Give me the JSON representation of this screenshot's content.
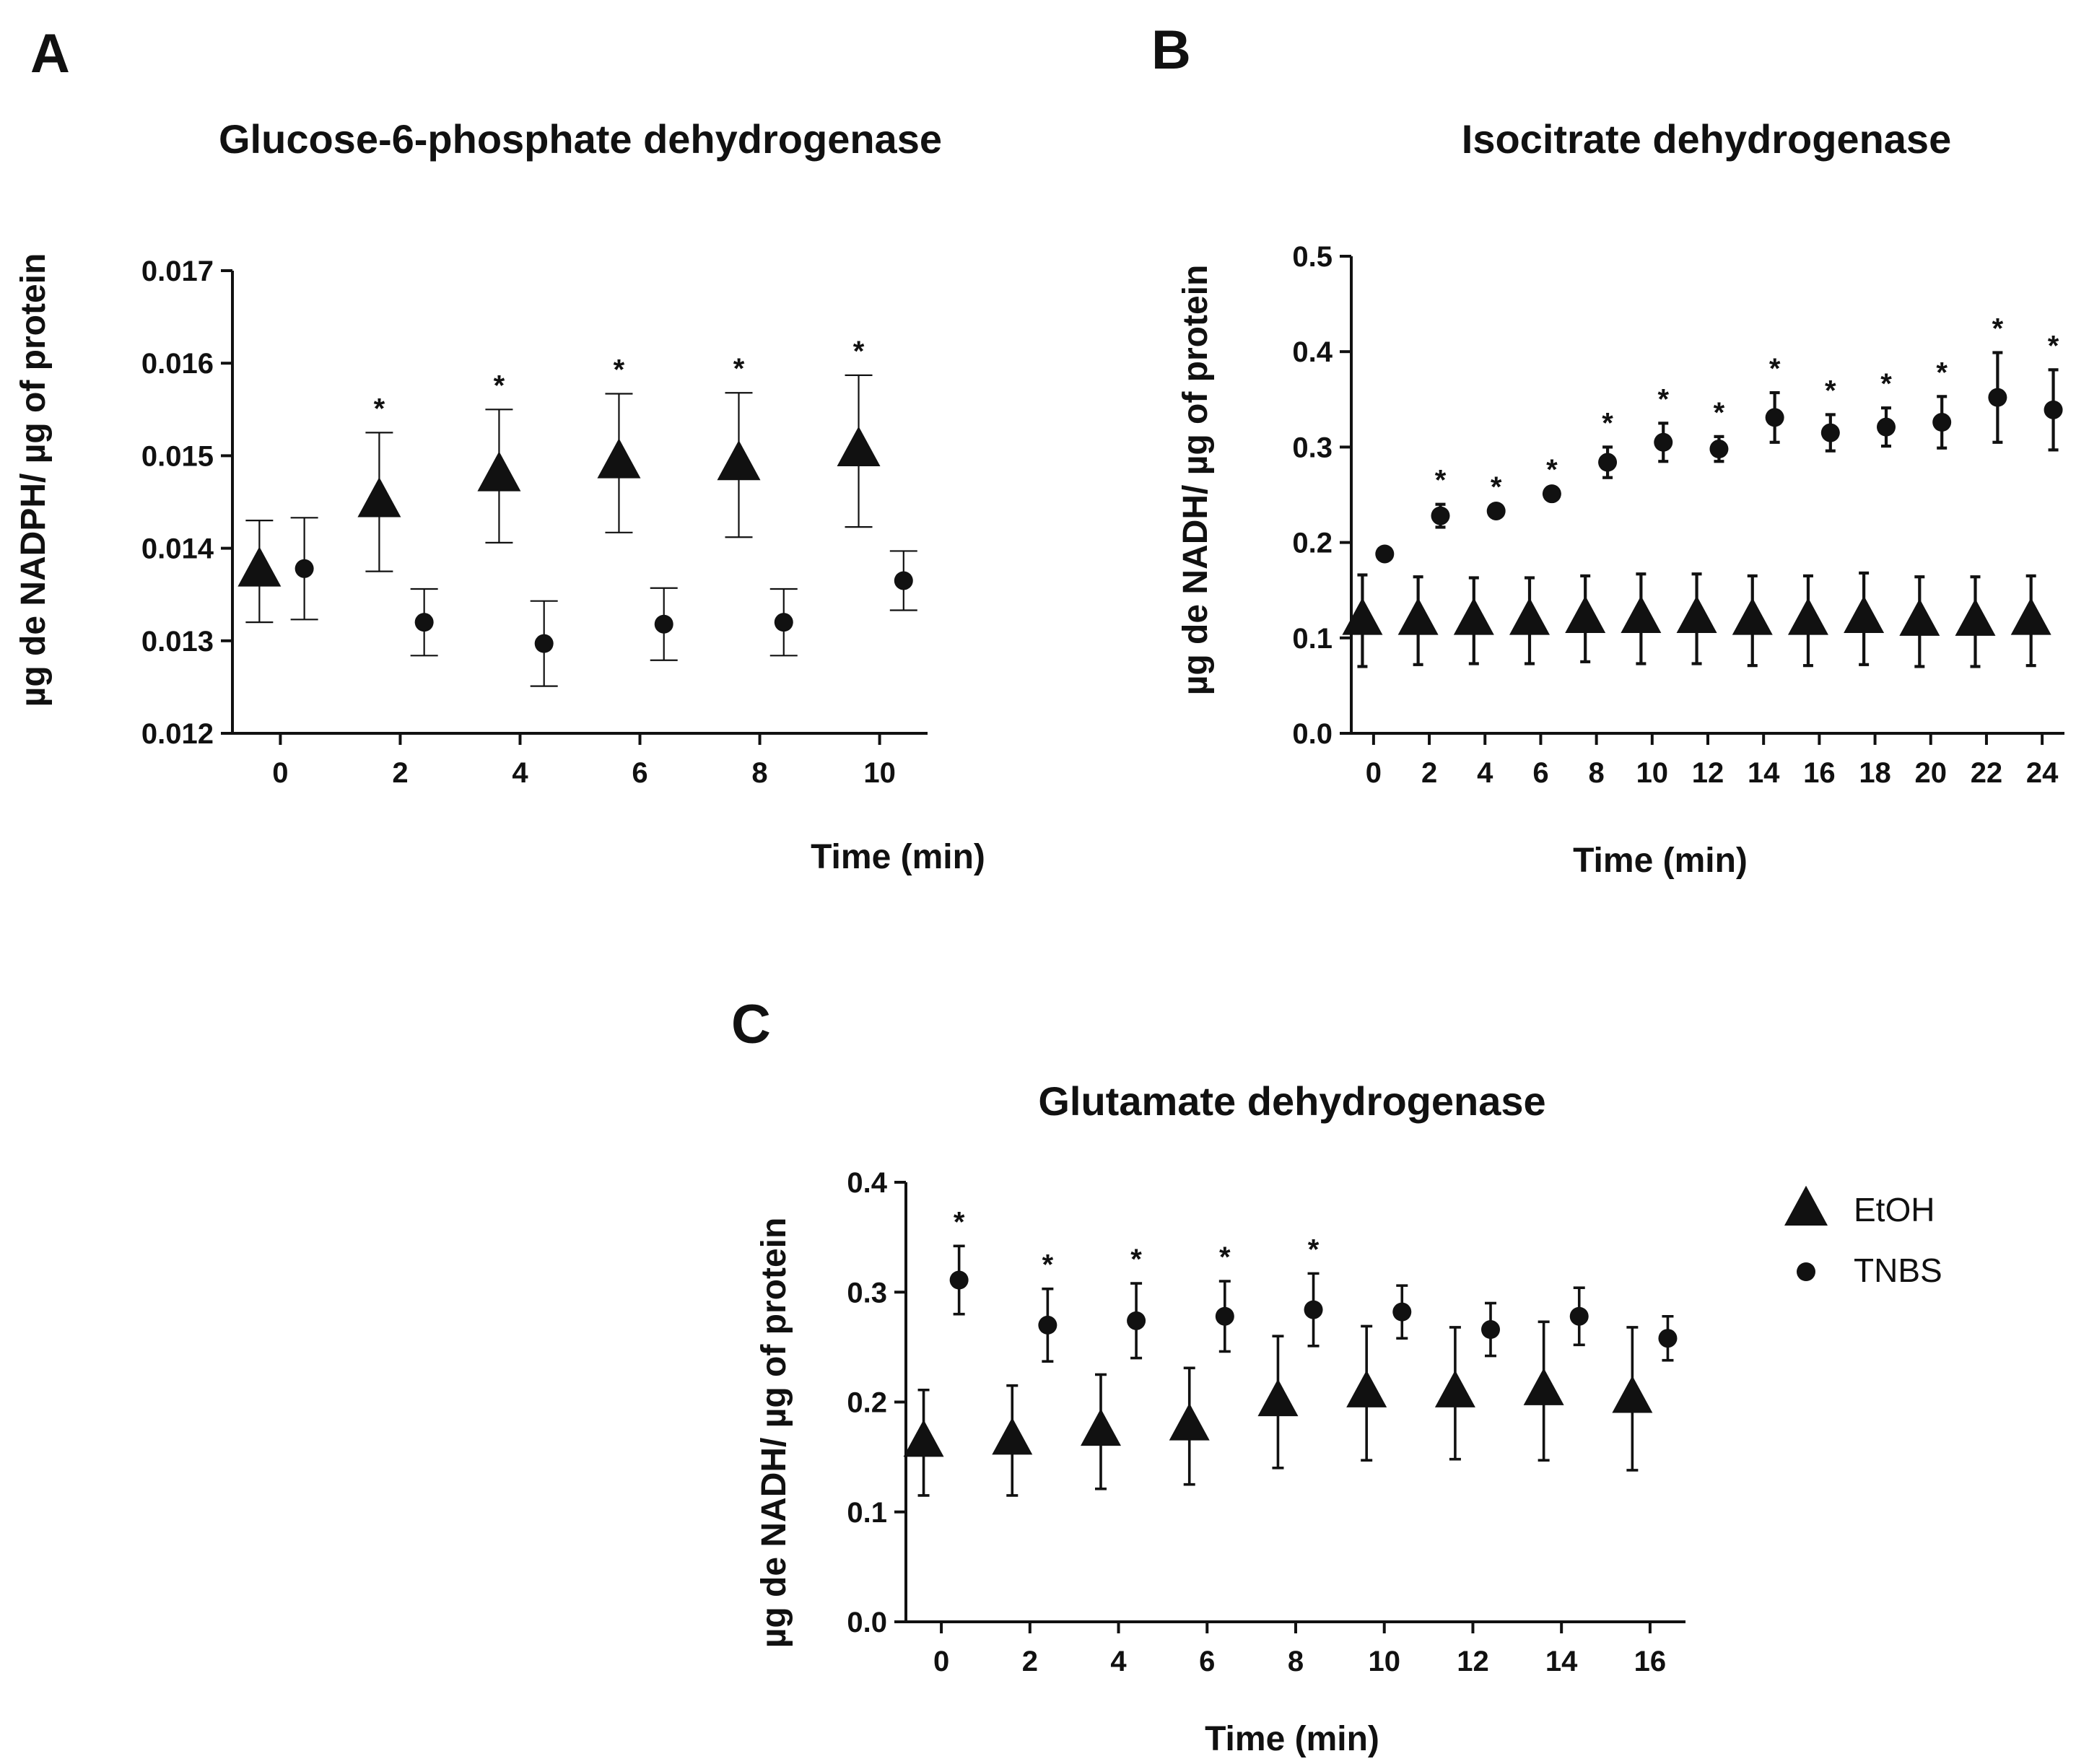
{
  "chart_data": [
    {
      "panel": "A",
      "type": "scatter",
      "title": "Glucose-6-phosphate dehydrogenase",
      "xlabel": "Time (min)",
      "ylabel": "µg de NADPH/ µg of protein",
      "xlim": [
        -0.8,
        10.8
      ],
      "ylim": [
        0.012,
        0.017
      ],
      "xticks": [
        0,
        2,
        4,
        6,
        8,
        10
      ],
      "yticks": [
        0.012,
        0.013,
        0.014,
        0.015,
        0.016,
        0.017
      ],
      "ytick_labels": [
        "0.012",
        "0.013",
        "0.014",
        "0.015",
        "0.016",
        "0.017"
      ],
      "series": [
        {
          "name": "EtOH",
          "marker": "triangle",
          "x_offset": -0.35,
          "x": [
            0,
            2,
            4,
            6,
            8,
            10
          ],
          "y": [
            0.01375,
            0.0145,
            0.01478,
            0.01492,
            0.0149,
            0.01505
          ],
          "err": [
            0.00055,
            0.00075,
            0.00072,
            0.00075,
            0.00078,
            0.00082
          ]
        },
        {
          "name": "TNBS",
          "marker": "circle",
          "x_offset": 0.4,
          "x": [
            0,
            2,
            4,
            6,
            8,
            10
          ],
          "y": [
            0.01378,
            0.0132,
            0.01297,
            0.01318,
            0.0132,
            0.01365
          ],
          "err": [
            0.00055,
            0.00036,
            0.00046,
            0.00039,
            0.00036,
            0.00032
          ]
        }
      ],
      "significance": [
        {
          "label": "*",
          "x": 2,
          "series": "EtOH"
        },
        {
          "label": "*",
          "x": 4,
          "series": "EtOH"
        },
        {
          "label": "*",
          "x": 6,
          "series": "EtOH"
        },
        {
          "label": "*",
          "x": 8,
          "series": "EtOH"
        },
        {
          "label": "*",
          "x": 10,
          "series": "EtOH"
        }
      ]
    },
    {
      "panel": "B",
      "type": "scatter",
      "title": "Isocitrate dehydrogenase",
      "xlabel": "Time (min)",
      "ylabel": "µg de NADH/ µg of protein",
      "xlim": [
        -0.8,
        24.8
      ],
      "ylim": [
        0.0,
        0.5
      ],
      "xticks": [
        0,
        2,
        4,
        6,
        8,
        10,
        12,
        14,
        16,
        18,
        20,
        22,
        24
      ],
      "yticks": [
        0.0,
        0.1,
        0.2,
        0.3,
        0.4,
        0.5
      ],
      "ytick_labels": [
        "0.0",
        "0.1",
        "0.2",
        "0.3",
        "0.4",
        "0.5"
      ],
      "series": [
        {
          "name": "EtOH",
          "marker": "triangle",
          "x_offset": -0.4,
          "x": [
            0,
            2,
            4,
            6,
            8,
            10,
            12,
            14,
            16,
            18,
            20,
            22,
            24
          ],
          "y": [
            0.118,
            0.118,
            0.118,
            0.118,
            0.12,
            0.12,
            0.12,
            0.118,
            0.118,
            0.12,
            0.117,
            0.117,
            0.118
          ],
          "err": [
            0.048,
            0.046,
            0.045,
            0.045,
            0.045,
            0.047,
            0.047,
            0.047,
            0.047,
            0.048,
            0.047,
            0.047,
            0.047
          ]
        },
        {
          "name": "TNBS",
          "marker": "circle",
          "x_offset": 0.4,
          "x": [
            0,
            2,
            4,
            6,
            8,
            10,
            12,
            14,
            16,
            18,
            20,
            22,
            24
          ],
          "y": [
            0.188,
            0.228,
            0.233,
            0.251,
            0.284,
            0.305,
            0.298,
            0.331,
            0.315,
            0.321,
            0.326,
            0.352,
            0.339
          ],
          "err": [
            0,
            0.012,
            0,
            0,
            0.016,
            0.02,
            0.013,
            0.026,
            0.019,
            0.02,
            0.027,
            0.047,
            0.042
          ]
        }
      ],
      "significance": [
        {
          "label": "*",
          "x": 2,
          "series": "TNBS"
        },
        {
          "label": "*",
          "x": 4,
          "series": "TNBS"
        },
        {
          "label": "*",
          "x": 6,
          "series": "TNBS"
        },
        {
          "label": "*",
          "x": 8,
          "series": "TNBS"
        },
        {
          "label": "*",
          "x": 10,
          "series": "TNBS"
        },
        {
          "label": "*",
          "x": 12,
          "series": "TNBS"
        },
        {
          "label": "*",
          "x": 14,
          "series": "TNBS"
        },
        {
          "label": "*",
          "x": 16,
          "series": "TNBS"
        },
        {
          "label": "*",
          "x": 18,
          "series": "TNBS"
        },
        {
          "label": "*",
          "x": 20,
          "series": "TNBS"
        },
        {
          "label": "*",
          "x": 22,
          "series": "TNBS"
        },
        {
          "label": "*",
          "x": 24,
          "series": "TNBS"
        }
      ]
    },
    {
      "panel": "C",
      "type": "scatter",
      "title": "Glutamate dehydrogenase",
      "xlabel": "Time (min)",
      "ylabel": "µg de NADH/ µg of protein",
      "xlim": [
        -0.8,
        16.8
      ],
      "ylim": [
        0.0,
        0.4
      ],
      "xticks": [
        0,
        2,
        4,
        6,
        8,
        10,
        12,
        14,
        16
      ],
      "yticks": [
        0.0,
        0.1,
        0.2,
        0.3,
        0.4
      ],
      "ytick_labels": [
        "0.0",
        "0.1",
        "0.2",
        "0.3",
        "0.4"
      ],
      "series": [
        {
          "name": "EtOH",
          "marker": "triangle",
          "x_offset": -0.4,
          "x": [
            0,
            2,
            4,
            6,
            8,
            10,
            12,
            14,
            16
          ],
          "y": [
            0.163,
            0.165,
            0.173,
            0.178,
            0.2,
            0.208,
            0.208,
            0.21,
            0.203
          ],
          "err": [
            0.048,
            0.05,
            0.052,
            0.053,
            0.06,
            0.061,
            0.06,
            0.063,
            0.065
          ]
        },
        {
          "name": "TNBS",
          "marker": "circle",
          "x_offset": 0.4,
          "x": [
            0,
            2,
            4,
            6,
            8,
            10,
            12,
            14,
            16
          ],
          "y": [
            0.311,
            0.27,
            0.274,
            0.278,
            0.284,
            0.282,
            0.266,
            0.278,
            0.258
          ],
          "err": [
            0.031,
            0.033,
            0.034,
            0.032,
            0.033,
            0.024,
            0.024,
            0.026,
            0.02
          ]
        }
      ],
      "significance": [
        {
          "label": "*",
          "x": 0,
          "series": "TNBS"
        },
        {
          "label": "*",
          "x": 2,
          "series": "TNBS"
        },
        {
          "label": "*",
          "x": 4,
          "series": "TNBS"
        },
        {
          "label": "*",
          "x": 6,
          "series": "TNBS"
        },
        {
          "label": "*",
          "x": 8,
          "series": "TNBS"
        }
      ]
    }
  ],
  "legend": [
    {
      "label": "EtOH",
      "marker": "triangle"
    },
    {
      "label": "TNBS",
      "marker": "circle"
    }
  ],
  "colors": {
    "ink": "#111111",
    "background": "#ffffff"
  }
}
